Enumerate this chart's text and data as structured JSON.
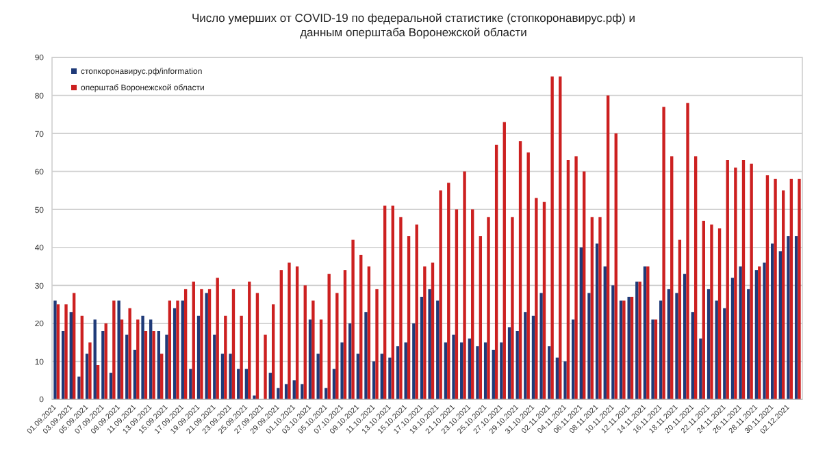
{
  "chart_data": {
    "type": "bar",
    "title": "Число умерших от COVID-19 по федеральной статистике (стопкоронавирус.рф) и\nданным оперштаба Воронежской области",
    "categories": [
      "01.09.2021",
      null,
      "03.09.2021",
      null,
      "05.09.2021",
      null,
      "07.09.2021",
      null,
      "09.09.2021",
      null,
      "11.09.2021",
      null,
      "13.09.2021",
      null,
      "15.09.2021",
      null,
      "17.09.2021",
      null,
      "19.09.2021",
      null,
      "21.09.2021",
      null,
      "23.09.2021",
      null,
      "25.09.2021",
      null,
      "27.09.2021",
      null,
      "29.09.2021",
      null,
      "01.10.2021",
      null,
      "03.10.2021",
      null,
      "05.10.2021",
      null,
      "07.10.2021",
      null,
      "09.10.2021",
      null,
      "11.10.2021",
      null,
      "13.10.2021",
      null,
      "15.10.2021",
      null,
      "17.10.2021",
      null,
      "19.10.2021",
      null,
      "21.10.2021",
      null,
      "23.10.2021",
      null,
      "25.10.2021",
      null,
      "27.10.2021",
      null,
      "29.10.2021",
      null,
      "31.10.2021",
      null,
      "02.11.2021",
      null,
      "04.11.2021",
      null,
      "06.11.2021",
      null,
      "08.11.2021",
      null,
      "10.11.2021",
      null,
      "12.11.2021",
      null,
      "14.11.2021",
      null,
      "16.11.2021",
      null,
      "18.11.2021",
      null,
      "20.11.2021",
      null,
      "22.11.2021",
      null,
      "24.11.2021",
      null,
      "26.11.2021",
      null,
      "28.11.2021",
      null,
      "30.11.2021",
      null,
      "02.12.2021",
      null
    ],
    "series": [
      {
        "name": "стопкоронавирус.рф/information",
        "color": "#1f3a78",
        "values": [
          26,
          18,
          23,
          6,
          12,
          21,
          18,
          7,
          26,
          17,
          13,
          22,
          21,
          18,
          17,
          24,
          26,
          8,
          22,
          28,
          17,
          12,
          12,
          8,
          8,
          1,
          0,
          7,
          3,
          4,
          5,
          4,
          21,
          12,
          3,
          8,
          15,
          20,
          12,
          23,
          10,
          12,
          11,
          14,
          15,
          20,
          27,
          29,
          26,
          15,
          17,
          15,
          16,
          14,
          15,
          13,
          15,
          19,
          18,
          23,
          22,
          28,
          14,
          11,
          10,
          21,
          40,
          28,
          41,
          35,
          30,
          26,
          27,
          31,
          35,
          21,
          26,
          29,
          28,
          33,
          23,
          16,
          29,
          26,
          24,
          32,
          35,
          29,
          34,
          36,
          41,
          39,
          43,
          43
        ]
      },
      {
        "name": "оперштаб Воронежской области",
        "color": "#cc2020",
        "values": [
          25,
          25,
          28,
          22,
          15,
          9,
          20,
          26,
          21,
          24,
          21,
          18,
          18,
          12,
          26,
          26,
          29,
          31,
          29,
          29,
          32,
          22,
          29,
          22,
          31,
          28,
          17,
          25,
          34,
          36,
          35,
          30,
          26,
          21,
          33,
          28,
          34,
          42,
          38,
          35,
          29,
          51,
          51,
          48,
          43,
          46,
          35,
          36,
          55,
          57,
          50,
          60,
          50,
          43,
          48,
          67,
          73,
          48,
          68,
          65,
          53,
          52,
          85,
          85,
          63,
          64,
          60,
          48,
          48,
          80,
          70,
          26,
          27,
          31,
          35,
          21,
          77,
          64,
          42,
          78,
          64,
          47,
          46,
          45,
          63,
          61,
          63,
          62,
          35,
          59,
          58,
          55,
          58,
          58
        ]
      }
    ],
    "ylim": [
      0,
      90
    ],
    "yticks": [
      0,
      10,
      20,
      30,
      40,
      50,
      60,
      70,
      80,
      90
    ],
    "grid": "y",
    "legend": "top left"
  }
}
